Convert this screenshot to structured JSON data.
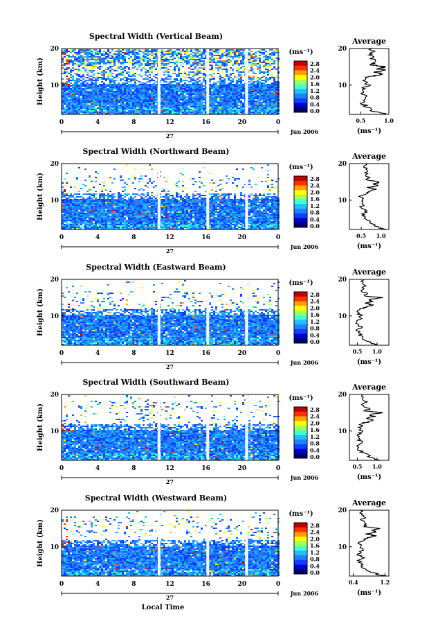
{
  "common": {
    "units_label": "(ms⁻¹)",
    "ylabel": "Height (km)",
    "average_title": "Average",
    "avg_xlabel": "(ms⁻¹)",
    "date_label": "Jun 2006",
    "day_label": "27",
    "xlabel": "Local Time",
    "colorbar_ticks": [
      "2.8",
      "2.4",
      "2.0",
      "1.6",
      "1.2",
      "0.8",
      "0.4",
      "0.0"
    ],
    "colormap": [
      "#00006a",
      "#0000cc",
      "#1040ff",
      "#2080ff",
      "#20c0ff",
      "#40ffd0",
      "#a0ff60",
      "#ffff00",
      "#ffa000",
      "#ff3000",
      "#c00000"
    ]
  },
  "chart_data": [
    {
      "type": "heatmap",
      "title": "Spectral Width (Vertical Beam)",
      "x_ticks": [
        "0",
        "4",
        "8",
        "12",
        "16",
        "20",
        "0"
      ],
      "y_ticks": [
        "20",
        "10"
      ],
      "xlim": [
        0,
        24
      ],
      "ylim": [
        2,
        20
      ],
      "colorbar_range": [
        0.0,
        3.0
      ],
      "data_gaps_hours": [
        10.8,
        16.2,
        20.5
      ],
      "average": {
        "type": "line",
        "xlim": [
          0.3,
          1.0
        ],
        "x_ticks": [
          "0.5",
          "1.0"
        ],
        "y_ticks": [
          "20",
          "10"
        ],
        "height_km": [
          2,
          2.5,
          3,
          4,
          5,
          6,
          7,
          8,
          9,
          10,
          11,
          12,
          12.5,
          13,
          13.5,
          14,
          14.5,
          15,
          15.5,
          16,
          17,
          18,
          19,
          20
        ],
        "width": [
          0.95,
          0.85,
          0.7,
          0.62,
          0.55,
          0.52,
          0.6,
          0.5,
          0.55,
          0.62,
          0.55,
          0.58,
          0.72,
          0.88,
          0.75,
          0.92,
          0.8,
          0.95,
          0.7,
          0.75,
          0.7,
          0.68,
          0.72,
          0.7
        ]
      }
    },
    {
      "type": "heatmap",
      "title": "Spectral Width (Northward Beam)",
      "x_ticks": [
        "0",
        "4",
        "8",
        "12",
        "16",
        "20",
        "0"
      ],
      "y_ticks": [
        "20",
        "10"
      ],
      "xlim": [
        0,
        24
      ],
      "ylim": [
        2,
        20
      ],
      "colorbar_range": [
        0.0,
        3.0
      ],
      "data_gaps_hours": [
        10.8,
        16.2,
        20.5
      ],
      "average": {
        "type": "line",
        "xlim": [
          0.2,
          1.2
        ],
        "x_ticks": [
          "0.5",
          "1.0"
        ],
        "y_ticks": [
          "20",
          "10"
        ],
        "height_km": [
          2,
          2.5,
          3,
          4,
          5,
          6,
          7,
          8,
          9,
          10,
          11,
          12,
          12.5,
          13,
          13.5,
          14,
          14.5,
          15,
          15.5,
          16,
          17,
          18,
          19,
          20
        ],
        "width": [
          1.1,
          0.95,
          0.85,
          0.7,
          0.6,
          0.55,
          0.62,
          0.5,
          0.58,
          0.55,
          0.5,
          0.62,
          0.72,
          0.85,
          0.7,
          0.9,
          0.8,
          1.0,
          0.65,
          0.7,
          0.6,
          0.62,
          0.58,
          0.62
        ]
      }
    },
    {
      "type": "heatmap",
      "title": "Spectral Width (Eastward Beam)",
      "x_ticks": [
        "0",
        "4",
        "8",
        "12",
        "16",
        "20",
        "0"
      ],
      "y_ticks": [
        "20",
        "10"
      ],
      "xlim": [
        0,
        24
      ],
      "ylim": [
        2,
        20
      ],
      "colorbar_range": [
        0.0,
        3.0
      ],
      "data_gaps_hours": [
        10.8,
        16.2,
        20.5
      ],
      "average": {
        "type": "line",
        "xlim": [
          0.3,
          1.3
        ],
        "x_ticks": [
          "0.5",
          "1.0"
        ],
        "y_ticks": [
          "20",
          "10"
        ],
        "height_km": [
          2,
          2.5,
          3,
          4,
          5,
          6,
          7,
          8,
          9,
          10,
          11,
          12,
          12.5,
          13,
          13.5,
          14,
          14.5,
          15,
          15.5,
          16,
          17,
          18,
          19,
          20
        ],
        "width": [
          1.0,
          0.9,
          0.8,
          0.62,
          0.55,
          0.52,
          0.58,
          0.48,
          0.55,
          0.6,
          0.52,
          0.62,
          0.75,
          0.85,
          0.72,
          0.88,
          0.78,
          1.15,
          0.65,
          0.75,
          0.62,
          0.68,
          0.62,
          0.65
        ]
      }
    },
    {
      "type": "heatmap",
      "title": "Spectral Width (Southward Beam)",
      "x_ticks": [
        "0",
        "4",
        "8",
        "12",
        "16",
        "20",
        "0"
      ],
      "y_ticks": [
        "20",
        "10"
      ],
      "xlim": [
        0,
        24
      ],
      "ylim": [
        2,
        20
      ],
      "colorbar_range": [
        0.0,
        3.0
      ],
      "data_gaps_hours": [
        10.8,
        16.2,
        20.5
      ],
      "average": {
        "type": "line",
        "xlim": [
          0.3,
          1.3
        ],
        "x_ticks": [
          "0.5",
          "1.0"
        ],
        "y_ticks": [
          "20",
          "10"
        ],
        "height_km": [
          2,
          2.5,
          3,
          4,
          5,
          6,
          7,
          8,
          9,
          10,
          11,
          12,
          12.5,
          13,
          13.5,
          14,
          14.5,
          15,
          15.5,
          16,
          17,
          18,
          19,
          20
        ],
        "width": [
          1.05,
          0.92,
          0.82,
          0.65,
          0.55,
          0.5,
          0.6,
          0.5,
          0.55,
          0.62,
          0.55,
          0.62,
          0.78,
          0.88,
          0.7,
          0.95,
          0.8,
          1.2,
          0.7,
          0.8,
          0.65,
          0.7,
          0.6,
          0.62
        ]
      }
    },
    {
      "type": "heatmap",
      "title": "Spectral Width (Westward Beam)",
      "x_ticks": [
        "0",
        "4",
        "8",
        "12",
        "16",
        "20",
        "0"
      ],
      "y_ticks": [
        "20",
        "10"
      ],
      "xlim": [
        0,
        24
      ],
      "ylim": [
        2,
        20
      ],
      "colorbar_range": [
        0.0,
        3.0
      ],
      "data_gaps_hours": [
        10.8,
        16.2,
        20.5
      ],
      "average": {
        "type": "line",
        "xlim": [
          0.3,
          1.3
        ],
        "x_ticks": [
          "0.4",
          "1.2"
        ],
        "y_ticks": [
          "20",
          "10"
        ],
        "height_km": [
          2,
          2.5,
          3,
          4,
          5,
          6,
          7,
          8,
          9,
          10,
          11,
          12,
          12.5,
          13,
          13.5,
          14,
          14.5,
          15,
          15.5,
          16,
          17,
          18,
          19,
          20
        ],
        "width": [
          1.2,
          1.0,
          0.88,
          0.7,
          0.6,
          0.55,
          0.62,
          0.52,
          0.6,
          0.58,
          0.55,
          0.65,
          0.8,
          0.95,
          0.75,
          1.0,
          0.85,
          1.05,
          0.7,
          0.72,
          0.62,
          0.65,
          0.6,
          0.58
        ]
      }
    }
  ]
}
